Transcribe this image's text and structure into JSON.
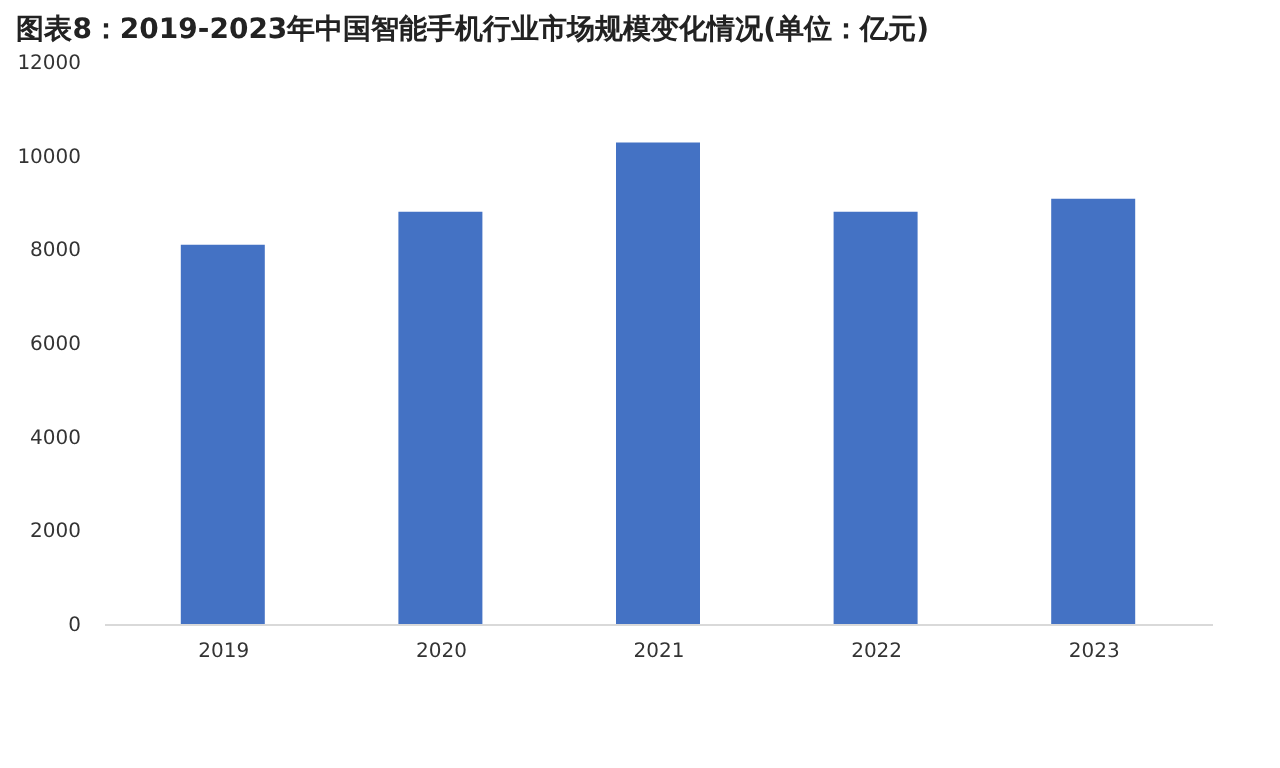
{
  "chart_data": {
    "type": "bar",
    "title": "图表8：2019-2023年中国智能手机行业市场规模变化情况(单位：亿元)",
    "categories": [
      "2019",
      "2020",
      "2021",
      "2022",
      "2023"
    ],
    "values": [
      8100,
      8800,
      10280,
      8800,
      9080
    ],
    "color": "#4472c4",
    "ylim": [
      0,
      12000
    ],
    "yticks": [
      0,
      2000,
      4000,
      6000,
      8000,
      10000,
      12000
    ],
    "grid": false
  }
}
